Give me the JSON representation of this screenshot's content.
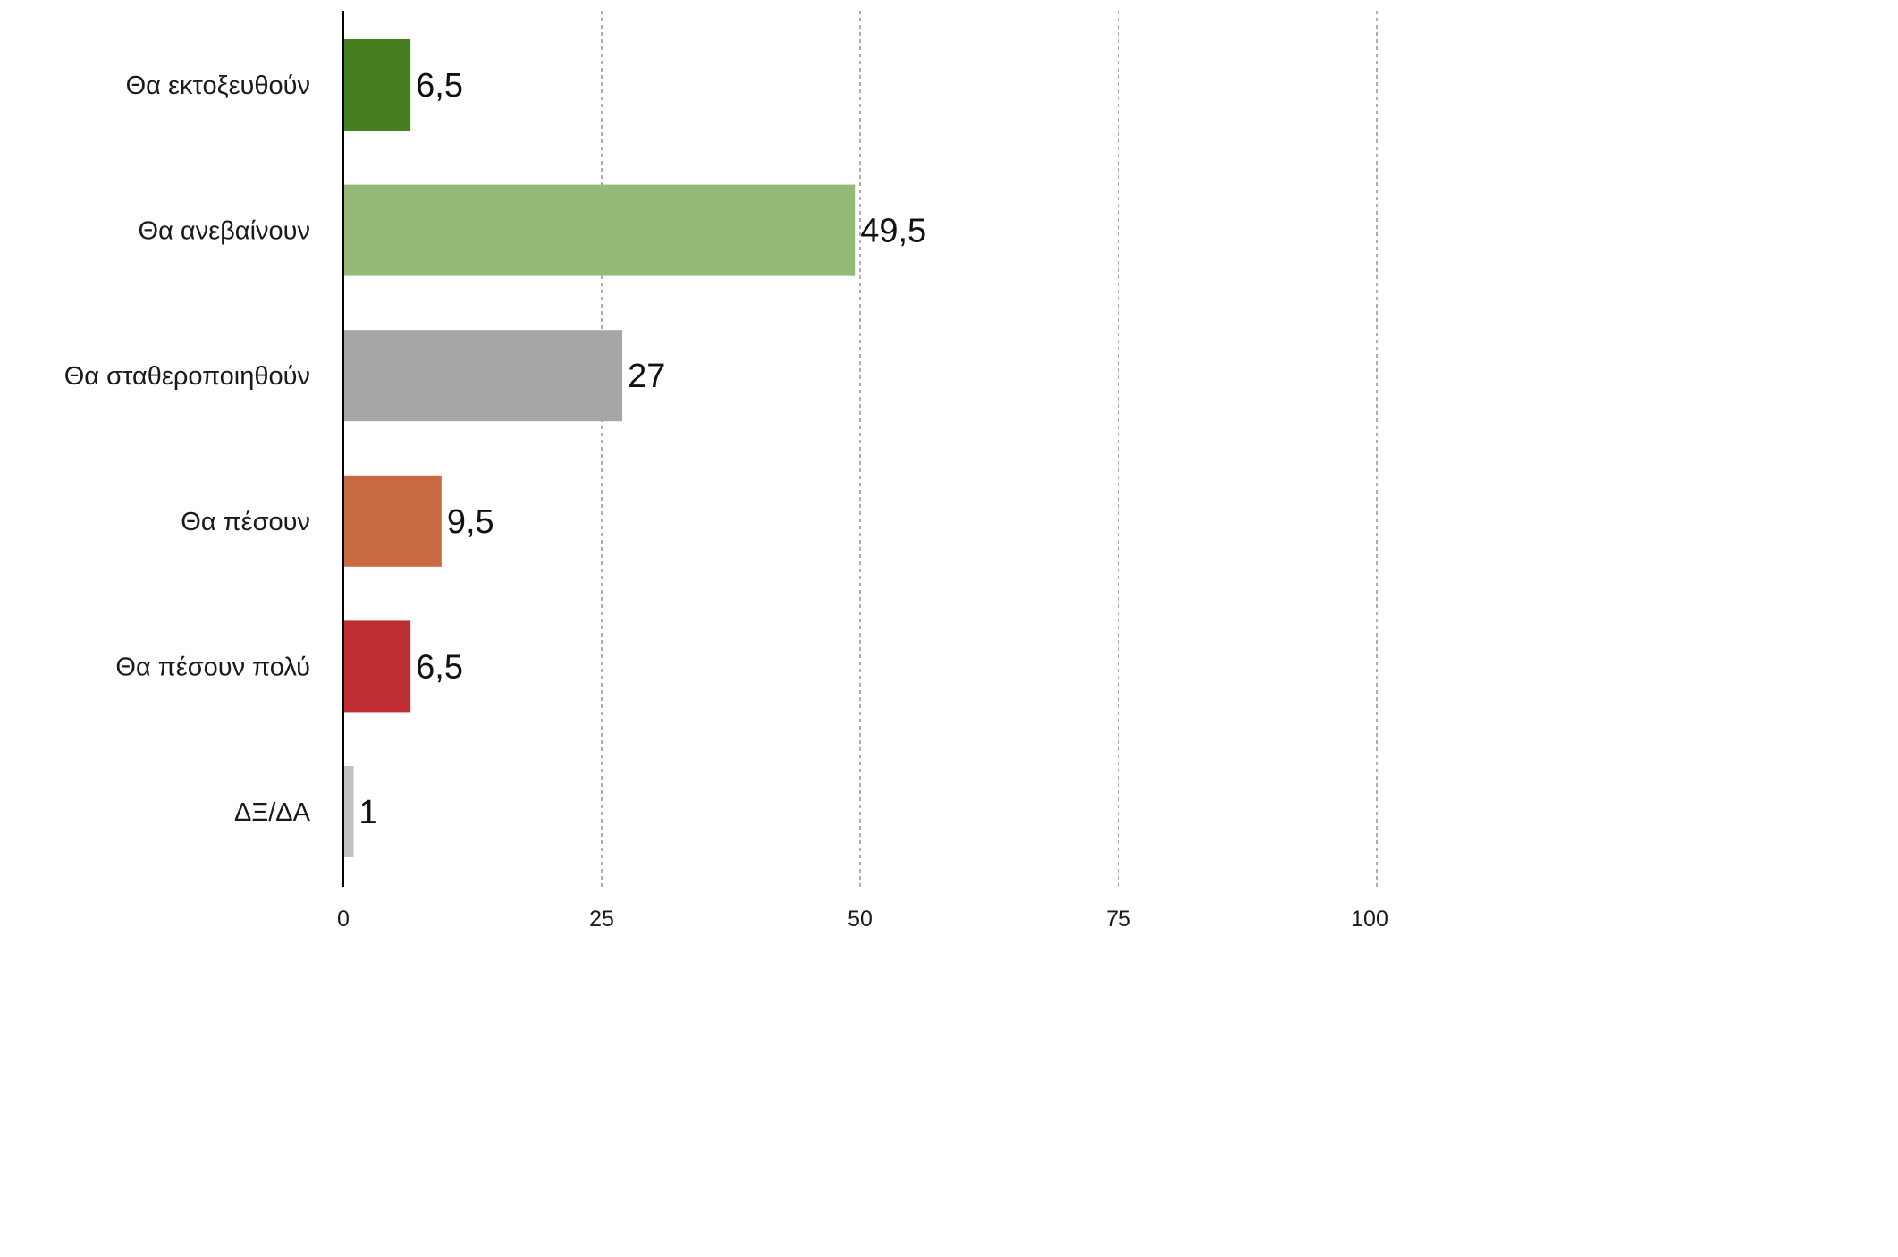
{
  "chart_data": {
    "type": "bar",
    "orientation": "horizontal",
    "categories": [
      "Θα εκτοξευθούν",
      "Θα ανεβαίνουν",
      "Θα σταθεροποιηθούν",
      "Θα πέσουν",
      "Θα πέσουν πολύ",
      "ΔΞ/ΔΑ"
    ],
    "values": [
      6.5,
      49.5,
      27,
      9.5,
      6.5,
      1
    ],
    "value_labels": [
      "6,5",
      "49,5",
      "27",
      "9,5",
      "6,5",
      "1"
    ],
    "colors": [
      "#467f1f",
      "#93ba76",
      "#a6a6a6",
      "#c86b42",
      "#bd2d31",
      "#c2c2c2"
    ],
    "xlim": [
      0,
      100
    ],
    "xticks": [
      0,
      25,
      50,
      75,
      100
    ],
    "xtick_labels": [
      "0",
      "25",
      "50",
      "75",
      "100"
    ],
    "title": "",
    "xlabel": "",
    "ylabel": "",
    "grid": "vertical dashed at 25, 50, 75, 100",
    "legend": "none"
  }
}
